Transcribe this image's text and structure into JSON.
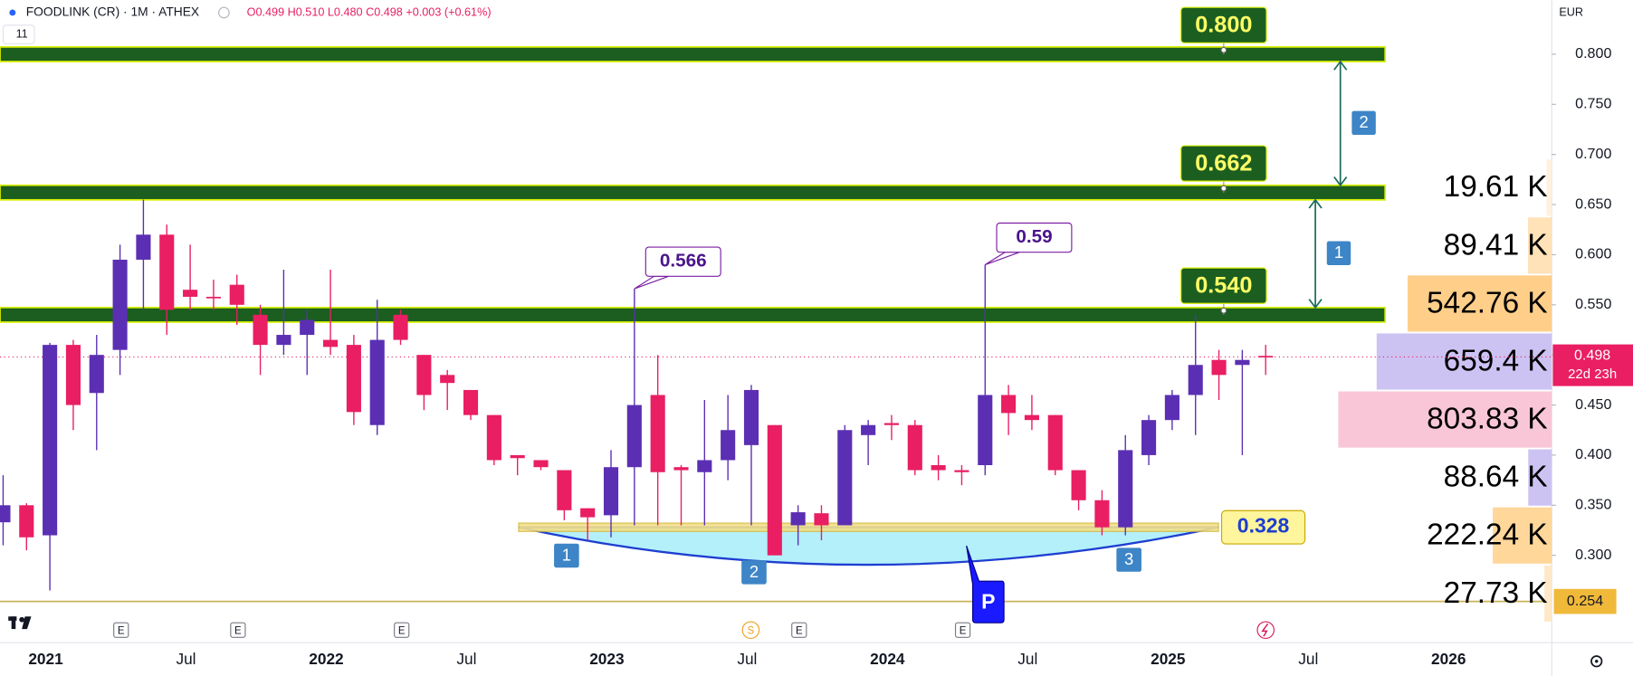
{
  "chart_data": {
    "type": "candlestick",
    "title": "FOODLINK (CR) · 1M · ATHEX",
    "header_values": "O0.499 H0.510 L0.480 C0.498 +0.003 (+0.61%)",
    "indicator_count": "11",
    "currency": "EUR",
    "categories": [
      null,
      null,
      "2021",
      null,
      null,
      null,
      null,
      null,
      "Jul",
      null,
      null,
      null,
      null,
      null,
      "2022",
      null,
      null,
      null,
      null,
      null,
      "Jul",
      null,
      null,
      null,
      null,
      null,
      "2023",
      null,
      null,
      null,
      null,
      null,
      "Jul",
      null,
      null,
      null,
      null,
      null,
      "2024",
      null,
      null,
      null,
      null,
      null,
      "Jul",
      null,
      null,
      null,
      null,
      null,
      "2025",
      null,
      null,
      null,
      null,
      null,
      "Jul",
      null,
      null,
      null,
      null,
      null,
      "2026",
      null
    ],
    "open": [
      0.333,
      0.35,
      0.32,
      0.51,
      0.462,
      0.505,
      0.595,
      0.62,
      0.565,
      0.558,
      0.57,
      0.54,
      0.51,
      0.52,
      0.515,
      0.51,
      0.43,
      0.54,
      0.5,
      0.48,
      0.465,
      0.44,
      0.4,
      0.395,
      0.385,
      0.347,
      0.34,
      0.388,
      0.46,
      0.388,
      0.383,
      0.395,
      0.41,
      0.43,
      0.33,
      0.342,
      0.33,
      0.42,
      0.432,
      0.43,
      0.39,
      0.385,
      0.39,
      0.46,
      0.44,
      0.44,
      0.385,
      0.355,
      0.328,
      0.4,
      0.435,
      0.46,
      0.495,
      0.49,
      0.499,
      null,
      null,
      null,
      null,
      null,
      null,
      null,
      null,
      null
    ],
    "high": [
      0.38,
      0.352,
      0.512,
      0.515,
      0.52,
      0.61,
      0.655,
      0.63,
      0.61,
      0.575,
      0.58,
      0.55,
      0.585,
      0.545,
      0.585,
      0.52,
      0.555,
      0.545,
      0.5,
      0.485,
      0.465,
      0.44,
      0.4,
      0.395,
      0.385,
      0.347,
      0.405,
      0.566,
      0.5,
      0.39,
      0.455,
      0.46,
      0.47,
      0.43,
      0.35,
      0.35,
      0.43,
      0.435,
      0.44,
      0.435,
      0.4,
      0.39,
      0.59,
      0.47,
      0.46,
      0.44,
      0.385,
      0.365,
      0.42,
      0.44,
      0.465,
      0.54,
      0.505,
      0.505,
      0.51,
      null,
      null,
      null,
      null,
      null,
      null,
      null,
      null,
      null
    ],
    "low": [
      0.31,
      0.305,
      0.265,
      0.425,
      0.405,
      0.48,
      0.545,
      0.52,
      0.545,
      0.545,
      0.53,
      0.48,
      0.5,
      0.48,
      0.5,
      0.43,
      0.42,
      0.51,
      0.445,
      0.445,
      0.435,
      0.39,
      0.38,
      0.385,
      0.335,
      0.315,
      0.318,
      0.33,
      0.33,
      0.33,
      0.33,
      0.375,
      0.33,
      0.3,
      0.31,
      0.315,
      0.33,
      0.39,
      0.415,
      0.38,
      0.375,
      0.37,
      0.38,
      0.42,
      0.425,
      0.38,
      0.345,
      0.32,
      0.32,
      0.39,
      0.425,
      0.42,
      0.455,
      0.4,
      0.48,
      null,
      null,
      null,
      null,
      null,
      null,
      null,
      null,
      null
    ],
    "close": [
      0.35,
      0.318,
      0.51,
      0.45,
      0.5,
      0.595,
      0.62,
      0.545,
      0.558,
      0.557,
      0.55,
      0.51,
      0.52,
      0.535,
      0.508,
      0.443,
      0.515,
      0.515,
      0.46,
      0.472,
      0.44,
      0.395,
      0.397,
      0.388,
      0.345,
      0.338,
      0.388,
      0.45,
      0.383,
      0.385,
      0.395,
      0.425,
      0.465,
      0.3,
      0.343,
      0.33,
      0.425,
      0.43,
      0.43,
      0.385,
      0.385,
      0.383,
      0.46,
      0.442,
      0.435,
      0.385,
      0.355,
      0.328,
      0.405,
      0.435,
      0.46,
      0.49,
      0.48,
      0.495,
      0.498,
      null,
      null,
      null,
      null,
      null,
      null,
      null,
      null,
      null
    ],
    "up_color": "#5b2fb3",
    "down_color": "#e91e63",
    "ylim": [
      0.213,
      0.854
    ],
    "yticks": [
      {
        "value": 0.3,
        "label": "0.300"
      },
      {
        "value": 0.35,
        "label": "0.350"
      },
      {
        "value": 0.4,
        "label": "0.400"
      },
      {
        "value": 0.45,
        "label": "0.450"
      },
      {
        "value": 0.5,
        "label": "0.500"
      },
      {
        "value": 0.55,
        "label": "0.550"
      },
      {
        "value": 0.6,
        "label": "0.600"
      },
      {
        "value": 0.65,
        "label": "0.650"
      },
      {
        "value": 0.7,
        "label": "0.700"
      },
      {
        "value": 0.75,
        "label": "0.750"
      },
      {
        "value": 0.8,
        "label": "0.800"
      }
    ],
    "levels": [
      {
        "value": 0.8,
        "label": "0.800"
      },
      {
        "value": 0.662,
        "label": "0.662"
      },
      {
        "value": 0.54,
        "label": "0.540"
      }
    ],
    "support": {
      "value": 0.328,
      "label": "0.328"
    },
    "baseline": {
      "value": 0.254,
      "label": "0.254"
    },
    "last_price": {
      "value": 0.498,
      "label": "0.498"
    },
    "countdown": "22d 23h",
    "callouts": [
      0.566,
      0.59
    ],
    "move_labels": [
      "1",
      "2"
    ],
    "pattern_labels": [
      "1",
      "2",
      "3",
      "P"
    ],
    "events": [
      "E",
      "E",
      "E",
      "S",
      "E",
      "E"
    ],
    "volume_profile": {
      "values": [
        19610,
        89410,
        542760,
        659400,
        803830,
        88640,
        222240,
        27730
      ],
      "value_labels": [
        "19.61 K",
        "89.41 K",
        "542.76 K",
        "659.4 K",
        "803.83 K",
        "88.64 K",
        "222.24 K",
        "27.73 K"
      ],
      "colors": [
        "#fff1dd",
        "#ffe2b8",
        "#ffcf8a",
        "#cdc3f3",
        "#f9c6d8",
        "#cdc3f3",
        "#ffd79a",
        "#ffe8c7"
      ]
    }
  }
}
